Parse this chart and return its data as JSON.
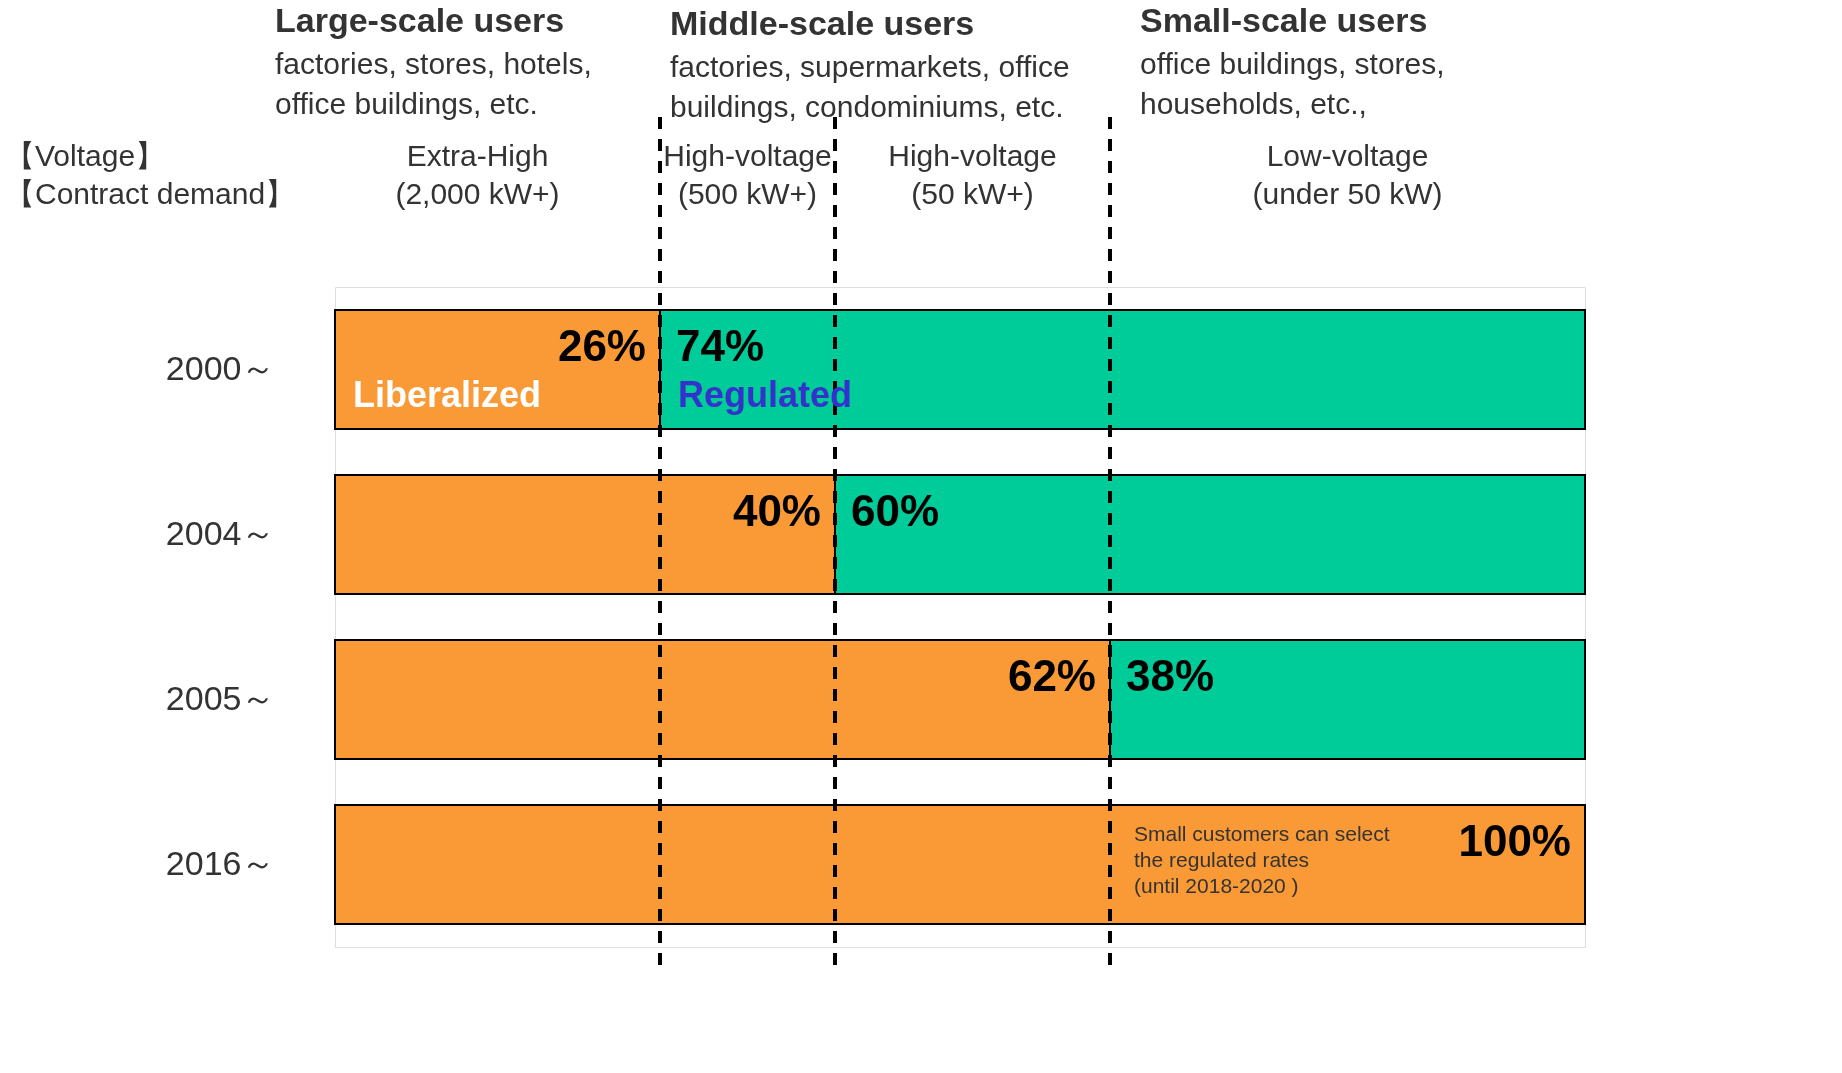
{
  "chart_data": {
    "type": "bar",
    "orientation": "horizontal",
    "stacked": true,
    "categories": [
      "2000～",
      "2004～",
      "2005～",
      "2016～"
    ],
    "series": [
      {
        "name": "Liberalized",
        "color": "#fa9a36",
        "values": [
          26,
          40,
          62,
          100
        ],
        "value_labels": [
          "26%",
          "40%",
          "62%",
          "100%"
        ]
      },
      {
        "name": "Regulated",
        "color": "#00cc99",
        "values": [
          74,
          60,
          38,
          null
        ],
        "value_labels": [
          "74%",
          "60%",
          "38%",
          null
        ]
      }
    ],
    "tick_labels": "y",
    "grid": false,
    "ref_lines": [
      {
        "axis": "x",
        "value": 26,
        "line_style": "dashed",
        "color": "#000000"
      },
      {
        "axis": "x",
        "value": 40,
        "line_style": "dashed",
        "color": "#000000"
      },
      {
        "axis": "x",
        "value": 62,
        "line_style": "dashed",
        "color": "#000000"
      }
    ],
    "annotations": [
      "Large-scale users",
      "factories, stores, hotels,",
      "office buildings, etc.",
      "Middle-scale users",
      "factories, supermarkets, office",
      "buildings, condominiums, etc.",
      "Small-scale users",
      "office buildings, stores,",
      "households, etc.,",
      "【Voltage】",
      "【Contract demand】",
      "Extra-High",
      "(2,000 kW+)",
      "High-voltage",
      "(500 kW+)",
      "High-voltage",
      "(50 kW+)",
      "Low-voltage",
      "(under 50 kW)",
      "Small customers can select",
      "the regulated rates",
      "(until 2018-2020 )"
    ]
  }
}
